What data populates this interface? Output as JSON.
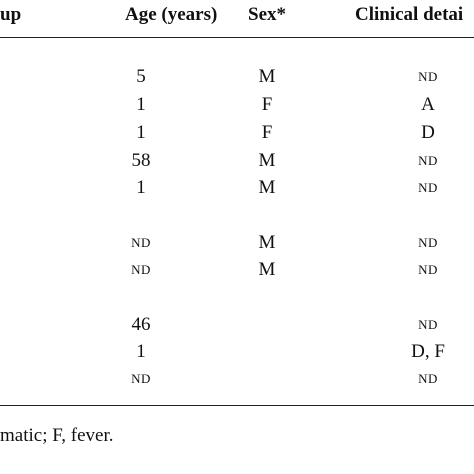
{
  "table": {
    "headers": {
      "group": "up",
      "age": "Age (years)",
      "sex": "Sex*",
      "clinical": "Clinical detai"
    },
    "rows": [
      {
        "age": "5",
        "sex": "M",
        "clinical": "ND"
      },
      {
        "age": "1",
        "sex": "F",
        "clinical": "A"
      },
      {
        "age": "1",
        "sex": "F",
        "clinical": "D"
      },
      {
        "age": "58",
        "sex": "M",
        "clinical": "ND"
      },
      {
        "age": "1",
        "sex": "M",
        "clinical": "ND"
      },
      {
        "age": "ND",
        "sex": "M",
        "clinical": "ND"
      },
      {
        "age": "ND",
        "sex": "M",
        "clinical": "ND"
      },
      {
        "age": "46",
        "sex": "",
        "clinical": "ND"
      },
      {
        "age": "1",
        "sex": "",
        "clinical": "D, F"
      },
      {
        "age": "ND",
        "sex": "",
        "clinical": "ND"
      }
    ],
    "footnote": "matic; F, fever."
  }
}
